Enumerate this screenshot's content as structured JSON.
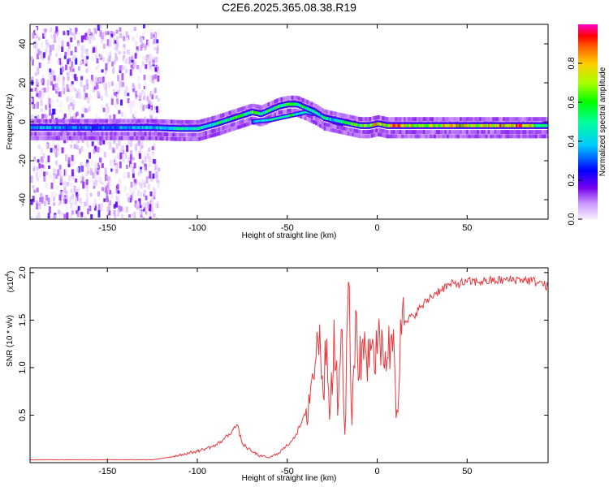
{
  "title": "C2E6.2025.365.08.38.R19",
  "chart_data": [
    {
      "type": "heatmap",
      "title": "C2E6.2025.365.08.38.R19",
      "xlabel": "Height of straight line (km)",
      "ylabel": "Frequency (Hz)",
      "xlim": [
        -193,
        95
      ],
      "ylim": [
        -50,
        50
      ],
      "x_ticks": [
        -150,
        -100,
        -50,
        0,
        50
      ],
      "x_tick_labels": [
        "-150",
        "-100",
        "-50",
        "0",
        "50"
      ],
      "y_ticks": [
        -40,
        -20,
        0,
        20,
        40
      ],
      "y_tick_labels": [
        "-40",
        "-20",
        "0",
        "20",
        "40"
      ],
      "ridge": {
        "x": [
          -193,
          -150,
          -125,
          -110,
          -100,
          -90,
          -80,
          -70,
          -65,
          -60,
          -55,
          -50,
          -45,
          -40,
          -35,
          -30,
          -25,
          -20,
          -15,
          -10,
          -5,
          0,
          5,
          10,
          20,
          40,
          60,
          80,
          95
        ],
        "freq": [
          -3,
          -3,
          -3,
          -3.5,
          -3.5,
          -1,
          2,
          5,
          4,
          6,
          8,
          9,
          9,
          7,
          5,
          2,
          1,
          0,
          -1,
          -2,
          -2,
          -1,
          -2,
          -2,
          -2,
          -2,
          -2,
          -2,
          -2
        ],
        "amplitude": [
          0.35,
          0.35,
          0.4,
          0.45,
          0.5,
          0.5,
          0.55,
          0.6,
          0.55,
          0.55,
          0.55,
          0.55,
          0.55,
          0.5,
          0.5,
          0.45,
          0.45,
          0.5,
          0.55,
          0.7,
          0.65,
          0.8,
          0.7,
          0.85,
          0.75,
          0.75,
          0.8,
          0.85,
          0.45
        ]
      },
      "secondary_ridge": {
        "x": [
          -70,
          -60,
          -50,
          -45,
          -40,
          -35,
          -30,
          -25,
          -20
        ],
        "freq": [
          0,
          1,
          3,
          4,
          5,
          4,
          2,
          0,
          -1
        ],
        "amplitude": [
          0.35,
          0.45,
          0.5,
          0.5,
          0.45,
          0.4,
          0.35,
          0.3,
          0.3
        ]
      },
      "noise_region": {
        "x": [
          -193,
          -122
        ],
        "amplitude_max": 0.2
      },
      "colorbar": {
        "label": "Normalized spectral amplitude",
        "range": [
          0,
          1
        ],
        "ticks": [
          0.0,
          0.2,
          0.4,
          0.6,
          0.8
        ],
        "tick_labels": [
          "0.0",
          "0.2",
          "0.4",
          "0.6",
          "0.8"
        ]
      }
    },
    {
      "type": "line",
      "xlabel": "Height of straight line (km)",
      "ylabel": "SNR (10 * v/v)",
      "y_scale_label": "(x10",
      "y_scale_exp": "4",
      "xlim": [
        -193,
        95
      ],
      "ylim": [
        0,
        2.05
      ],
      "x_ticks": [
        -150,
        -100,
        -50,
        0,
        50
      ],
      "x_tick_labels": [
        "-150",
        "-100",
        "-50",
        "0",
        "50"
      ],
      "y_ticks": [
        0.5,
        1.0,
        1.5,
        2.0
      ],
      "y_tick_labels": [
        "0.5",
        "1.0",
        "1.5",
        "2.0"
      ],
      "series": [
        {
          "name": "SNR",
          "color": "#e8383d",
          "x": [
            -193,
            -180,
            -160,
            -140,
            -125,
            -118,
            -110,
            -100,
            -95,
            -90,
            -85,
            -80,
            -78,
            -75,
            -70,
            -65,
            -60,
            -55,
            -50,
            -45,
            -40,
            -37,
            -34,
            -32,
            -30,
            -28,
            -26,
            -24,
            -22,
            -20,
            -18,
            -16,
            -14,
            -12,
            -10,
            -8,
            -6,
            -4,
            -2,
            0,
            3,
            6,
            9,
            11,
            13,
            15,
            20,
            25,
            30,
            35,
            40,
            50,
            60,
            70,
            80,
            90,
            95
          ],
          "values": [
            0.03,
            0.03,
            0.03,
            0.03,
            0.03,
            0.05,
            0.08,
            0.12,
            0.15,
            0.18,
            0.25,
            0.35,
            0.4,
            0.2,
            0.12,
            0.07,
            0.05,
            0.1,
            0.18,
            0.3,
            0.5,
            0.8,
            1.1,
            1.45,
            0.7,
            1.3,
            0.6,
            1.5,
            0.5,
            1.4,
            0.3,
            1.9,
            0.4,
            1.6,
            0.9,
            1.3,
            1.1,
            1.3,
            1.2,
            1.15,
            1.3,
            1.1,
            1.4,
            0.55,
            1.5,
            1.45,
            1.55,
            1.65,
            1.75,
            1.82,
            1.87,
            1.9,
            1.91,
            1.92,
            1.93,
            1.9,
            1.85
          ]
        }
      ]
    }
  ]
}
